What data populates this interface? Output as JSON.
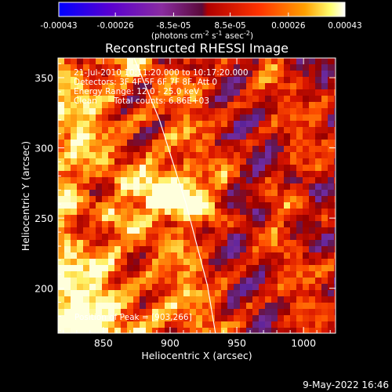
{
  "chart_data": {
    "type": "heatmap",
    "title": "Reconstructed RHESSI Image",
    "xlabel": "Heliocentric X (arcsec)",
    "ylabel": "Heliocentric Y (arcsec)",
    "xlim": [
      816,
      1024
    ],
    "ylim": [
      168,
      364
    ],
    "xticks": [
      850,
      900,
      950,
      1000
    ],
    "yticks": [
      200,
      250,
      300,
      350
    ],
    "colorbar": {
      "label_line1": "(photons cm",
      "label_sup1": "-2",
      "label_mid": " s",
      "label_sup2": "-1",
      "label_mid2": " asec",
      "label_sup3": "-2",
      "label_end": ")",
      "ticks": [
        {
          "label": "-0.00043",
          "value": -0.00043
        },
        {
          "label": "-0.00026",
          "value": -0.00026
        },
        {
          "label": "-8.5e-05",
          "value": -8.5e-05
        },
        {
          "label": "8.5e-05",
          "value": 8.5e-05
        },
        {
          "label": "0.00026",
          "value": 0.00026
        },
        {
          "label": "0.00043",
          "value": 0.00043
        }
      ],
      "range": [
        -0.00043,
        0.00043
      ],
      "colors": [
        "#0000ff",
        "#6600cc",
        "#9933cc",
        "#cc0000",
        "#ff3300",
        "#ff9900",
        "#ffff66",
        "#ffffff"
      ]
    },
    "info": {
      "line1": "21-Jul-2010 10:11:20.000 to 10:17:20.000",
      "line2": "Detectors: 3F 4F 5F 6F 7F 8F, Att 0",
      "line3": "Energy Range: 12.0 - 25.0 keV",
      "line4_a": "Clean",
      "line4_b": "Total counts: 6.86E+03"
    },
    "peak_label": "Position of Peak = [903,266]",
    "peak": {
      "x": 903,
      "y": 266
    },
    "limb_arc": {
      "points": [
        [
          873,
          364
        ],
        [
          892,
          320
        ],
        [
          912,
          260
        ],
        [
          928,
          202
        ],
        [
          934,
          168
        ]
      ]
    },
    "grid": false,
    "legend": "none"
  },
  "footer": {
    "date": "9-May-2022 16:46"
  }
}
